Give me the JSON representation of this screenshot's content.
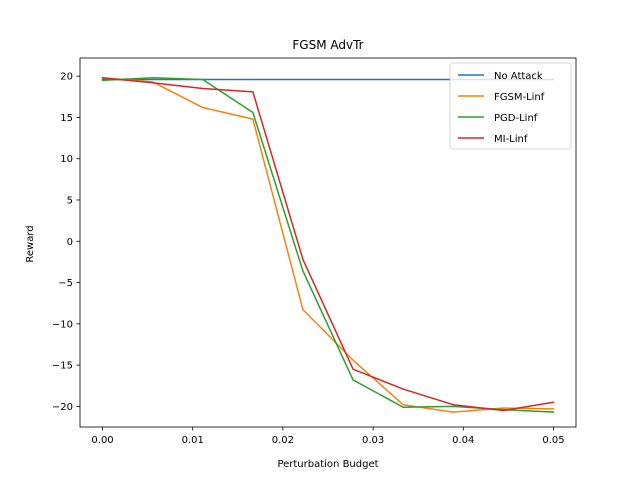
{
  "chart_data": {
    "type": "line",
    "title": "FGSM AdvTr",
    "xlabel": "Perturbation Budget",
    "ylabel": "Reward",
    "xlim": [
      -0.0025,
      0.0025
    ],
    "xlim_full": [
      -0.0025,
      0.0525
    ],
    "ylim": [
      -22.5,
      22.2
    ],
    "xticks": [
      0.0,
      0.01,
      0.02,
      0.03,
      0.04,
      0.05
    ],
    "xtick_labels": [
      "0.00",
      "0.01",
      "0.02",
      "0.03",
      "0.04",
      "0.05"
    ],
    "yticks": [
      -20,
      -15,
      -10,
      -5,
      0,
      5,
      10,
      15,
      20
    ],
    "ytick_labels": [
      "−20",
      "−15",
      "−10",
      "−5",
      "0",
      "5",
      "10",
      "15",
      "20"
    ],
    "grid": false,
    "legend_position": "top-right",
    "x": [
      0.0,
      0.00556,
      0.01111,
      0.01667,
      0.02222,
      0.02778,
      0.03333,
      0.03889,
      0.04444,
      0.05
    ],
    "series": [
      {
        "name": "No Attack",
        "color": "#1f77b4",
        "values": [
          19.6,
          19.6,
          19.6,
          19.6,
          19.6,
          19.6,
          19.6,
          19.6,
          19.6,
          19.6
        ]
      },
      {
        "name": "FGSM-Linf",
        "color": "#ff7f0e",
        "values": [
          19.8,
          19.3,
          16.2,
          14.8,
          -8.3,
          -14.4,
          -19.8,
          -20.7,
          -20.2,
          -20.3
        ]
      },
      {
        "name": "PGD-Linf",
        "color": "#2ca02c",
        "values": [
          19.5,
          19.8,
          19.6,
          15.6,
          -3.6,
          -16.8,
          -20.1,
          -20.0,
          -20.4,
          -20.7
        ]
      },
      {
        "name": "MI-Linf",
        "color": "#d62728",
        "values": [
          19.8,
          19.2,
          18.5,
          18.1,
          -2.2,
          -15.5,
          -17.9,
          -19.8,
          -20.5,
          -19.5
        ]
      }
    ]
  }
}
